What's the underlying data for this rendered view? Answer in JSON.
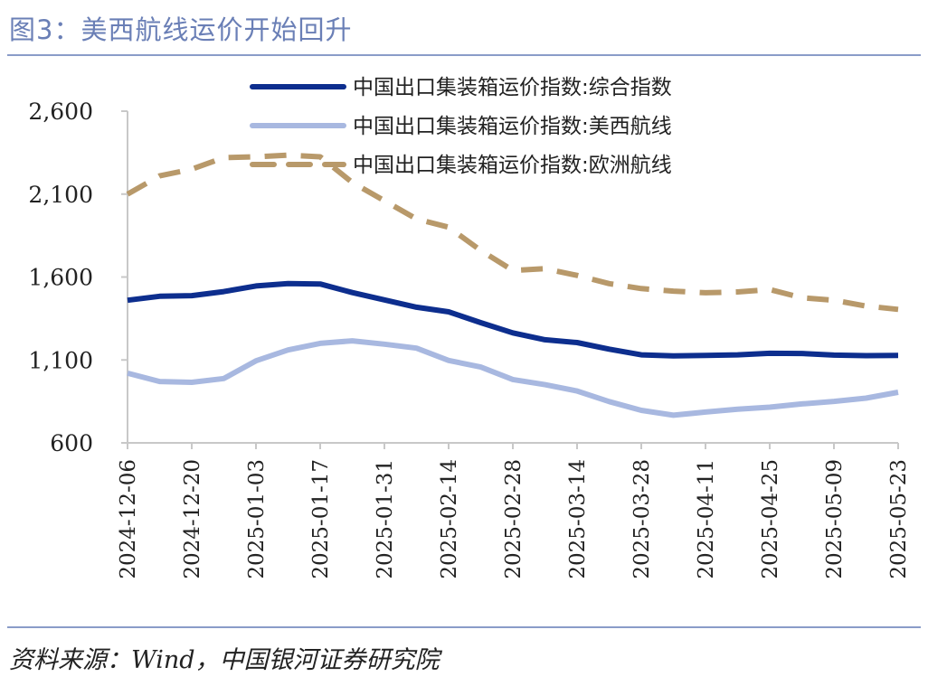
{
  "figure": {
    "title": "图3：美西航线运价开始回升",
    "source": "资料来源：Wind，中国银河证券研究院"
  },
  "colors": {
    "composite": "#0d2e8e",
    "us_west": "#a8b8e0",
    "europe": "#b8996a",
    "rule": "#8a9cc8",
    "title": "#6a7fb6"
  },
  "chart_data": {
    "type": "line",
    "x": [
      "2024-12-06",
      "2024-12-13",
      "2024-12-20",
      "2024-12-27",
      "2025-01-03",
      "2025-01-10",
      "2025-01-17",
      "2025-01-24",
      "2025-01-31",
      "2025-02-07",
      "2025-02-14",
      "2025-02-21",
      "2025-02-28",
      "2025-03-07",
      "2025-03-14",
      "2025-03-21",
      "2025-03-28",
      "2025-04-04",
      "2025-04-11",
      "2025-04-18",
      "2025-04-25",
      "2025-05-02",
      "2025-05-09",
      "2025-05-16",
      "2025-05-23"
    ],
    "xticks": [
      "2024-12-06",
      "2024-12-20",
      "2025-01-03",
      "2025-01-17",
      "2025-01-31",
      "2025-02-14",
      "2025-02-28",
      "2025-03-14",
      "2025-03-28",
      "2025-04-11",
      "2025-04-25",
      "2025-05-09",
      "2025-05-23"
    ],
    "yticks": [
      "600",
      "1,100",
      "1,600",
      "2,100",
      "2,600"
    ],
    "ylim": [
      600,
      2600
    ],
    "series": [
      {
        "name": "中国出口集装箱运价指数:综合指数",
        "style": "solid-dark",
        "values": [
          1460,
          1484,
          1488,
          1512,
          1546,
          1560,
          1558,
          1506,
          1462,
          1418,
          1390,
          1325,
          1263,
          1222,
          1205,
          1165,
          1131,
          1124,
          1127,
          1131,
          1140,
          1139,
          1129,
          1126,
          1127
        ]
      },
      {
        "name": "中国出口集装箱运价指数:美西航线",
        "style": "solid-light",
        "values": [
          1020,
          970,
          965,
          988,
          1095,
          1160,
          1200,
          1215,
          1195,
          1171,
          1097,
          1057,
          982,
          951,
          913,
          849,
          796,
          767,
          786,
          803,
          815,
          835,
          850,
          870,
          905
        ]
      },
      {
        "name": "中国出口集装箱运价指数:欧洲航线",
        "style": "dashed",
        "values": [
          2100,
          2210,
          2250,
          2320,
          2325,
          2335,
          2325,
          2170,
          2060,
          1950,
          1900,
          1760,
          1640,
          1650,
          1610,
          1560,
          1530,
          1515,
          1505,
          1510,
          1525,
          1475,
          1460,
          1425,
          1405
        ]
      }
    ],
    "legend": "top-center"
  }
}
